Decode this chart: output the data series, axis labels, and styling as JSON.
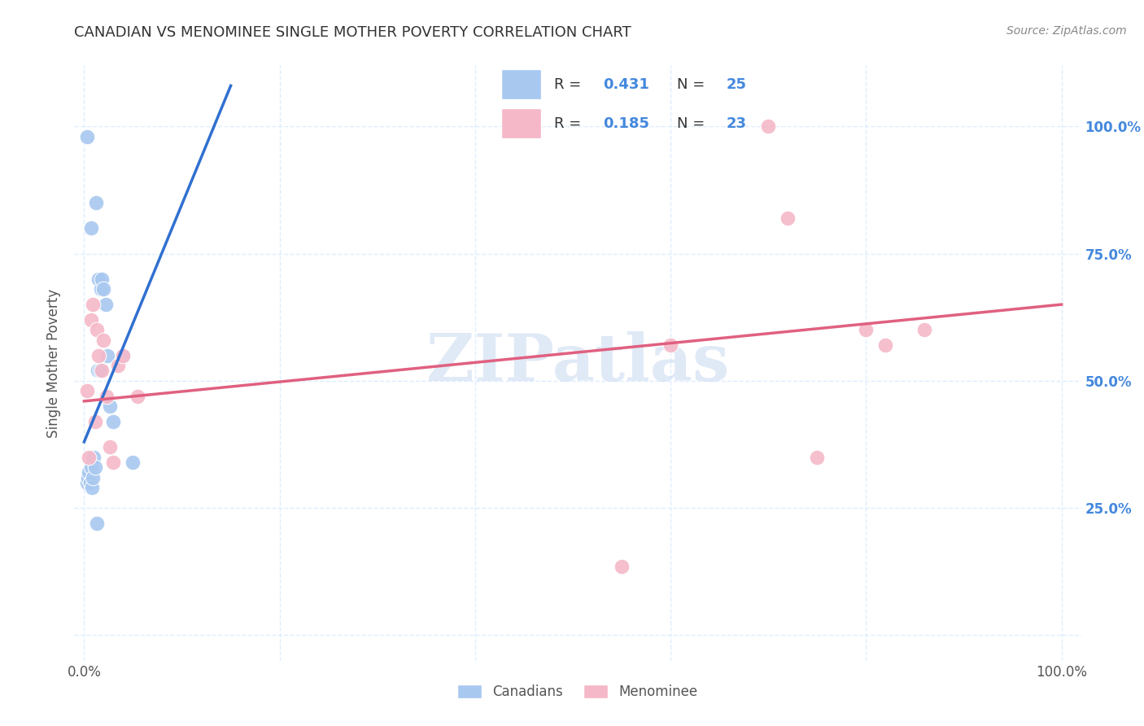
{
  "title": "CANADIAN VS MENOMINEE SINGLE MOTHER POVERTY CORRELATION CHART",
  "source": "Source: ZipAtlas.com",
  "ylabel": "Single Mother Poverty",
  "watermark": "ZIPatlas",
  "legend_label_blue": "Canadians",
  "legend_label_pink": "Menominee",
  "blue_color": "#A8C8F0",
  "pink_color": "#F5B8C8",
  "blue_line_color": "#3070D0",
  "pink_line_color": "#E06080",
  "right_axis_color": "#4488DD",
  "grid_color": "#DDEEFF",
  "background_color": "#FFFFFF",
  "canadians_x": [
    0.003,
    0.004,
    0.005,
    0.006,
    0.007,
    0.008,
    0.009,
    0.01,
    0.011,
    0.012,
    0.013,
    0.014,
    0.015,
    0.016,
    0.017,
    0.018,
    0.02,
    0.022,
    0.024,
    0.026,
    0.03,
    0.04,
    0.05,
    0.003,
    0.007
  ],
  "canadians_y": [
    0.3,
    0.31,
    0.32,
    0.3,
    0.33,
    0.29,
    0.31,
    0.35,
    0.33,
    0.85,
    0.22,
    0.52,
    0.7,
    0.52,
    0.68,
    0.7,
    0.68,
    0.65,
    0.55,
    0.45,
    0.42,
    0.55,
    0.34,
    0.98,
    0.8
  ],
  "menominee_x": [
    0.003,
    0.005,
    0.007,
    0.009,
    0.011,
    0.013,
    0.015,
    0.018,
    0.02,
    0.023,
    0.026,
    0.03,
    0.035,
    0.04,
    0.055,
    0.6,
    0.7,
    0.72,
    0.75,
    0.8,
    0.82,
    0.86,
    0.55
  ],
  "menominee_y": [
    0.48,
    0.35,
    0.62,
    0.65,
    0.42,
    0.6,
    0.55,
    0.52,
    0.58,
    0.47,
    0.37,
    0.34,
    0.53,
    0.55,
    0.47,
    0.57,
    1.0,
    0.82,
    0.35,
    0.6,
    0.57,
    0.6,
    0.135
  ],
  "xlim": [
    0.0,
    1.0
  ],
  "ylim": [
    -0.05,
    1.12
  ],
  "blue_line_x": [
    0.0,
    0.15
  ],
  "blue_line_y": [
    0.38,
    1.08
  ],
  "pink_line_x": [
    0.0,
    1.0
  ],
  "pink_line_y": [
    0.46,
    0.65
  ]
}
